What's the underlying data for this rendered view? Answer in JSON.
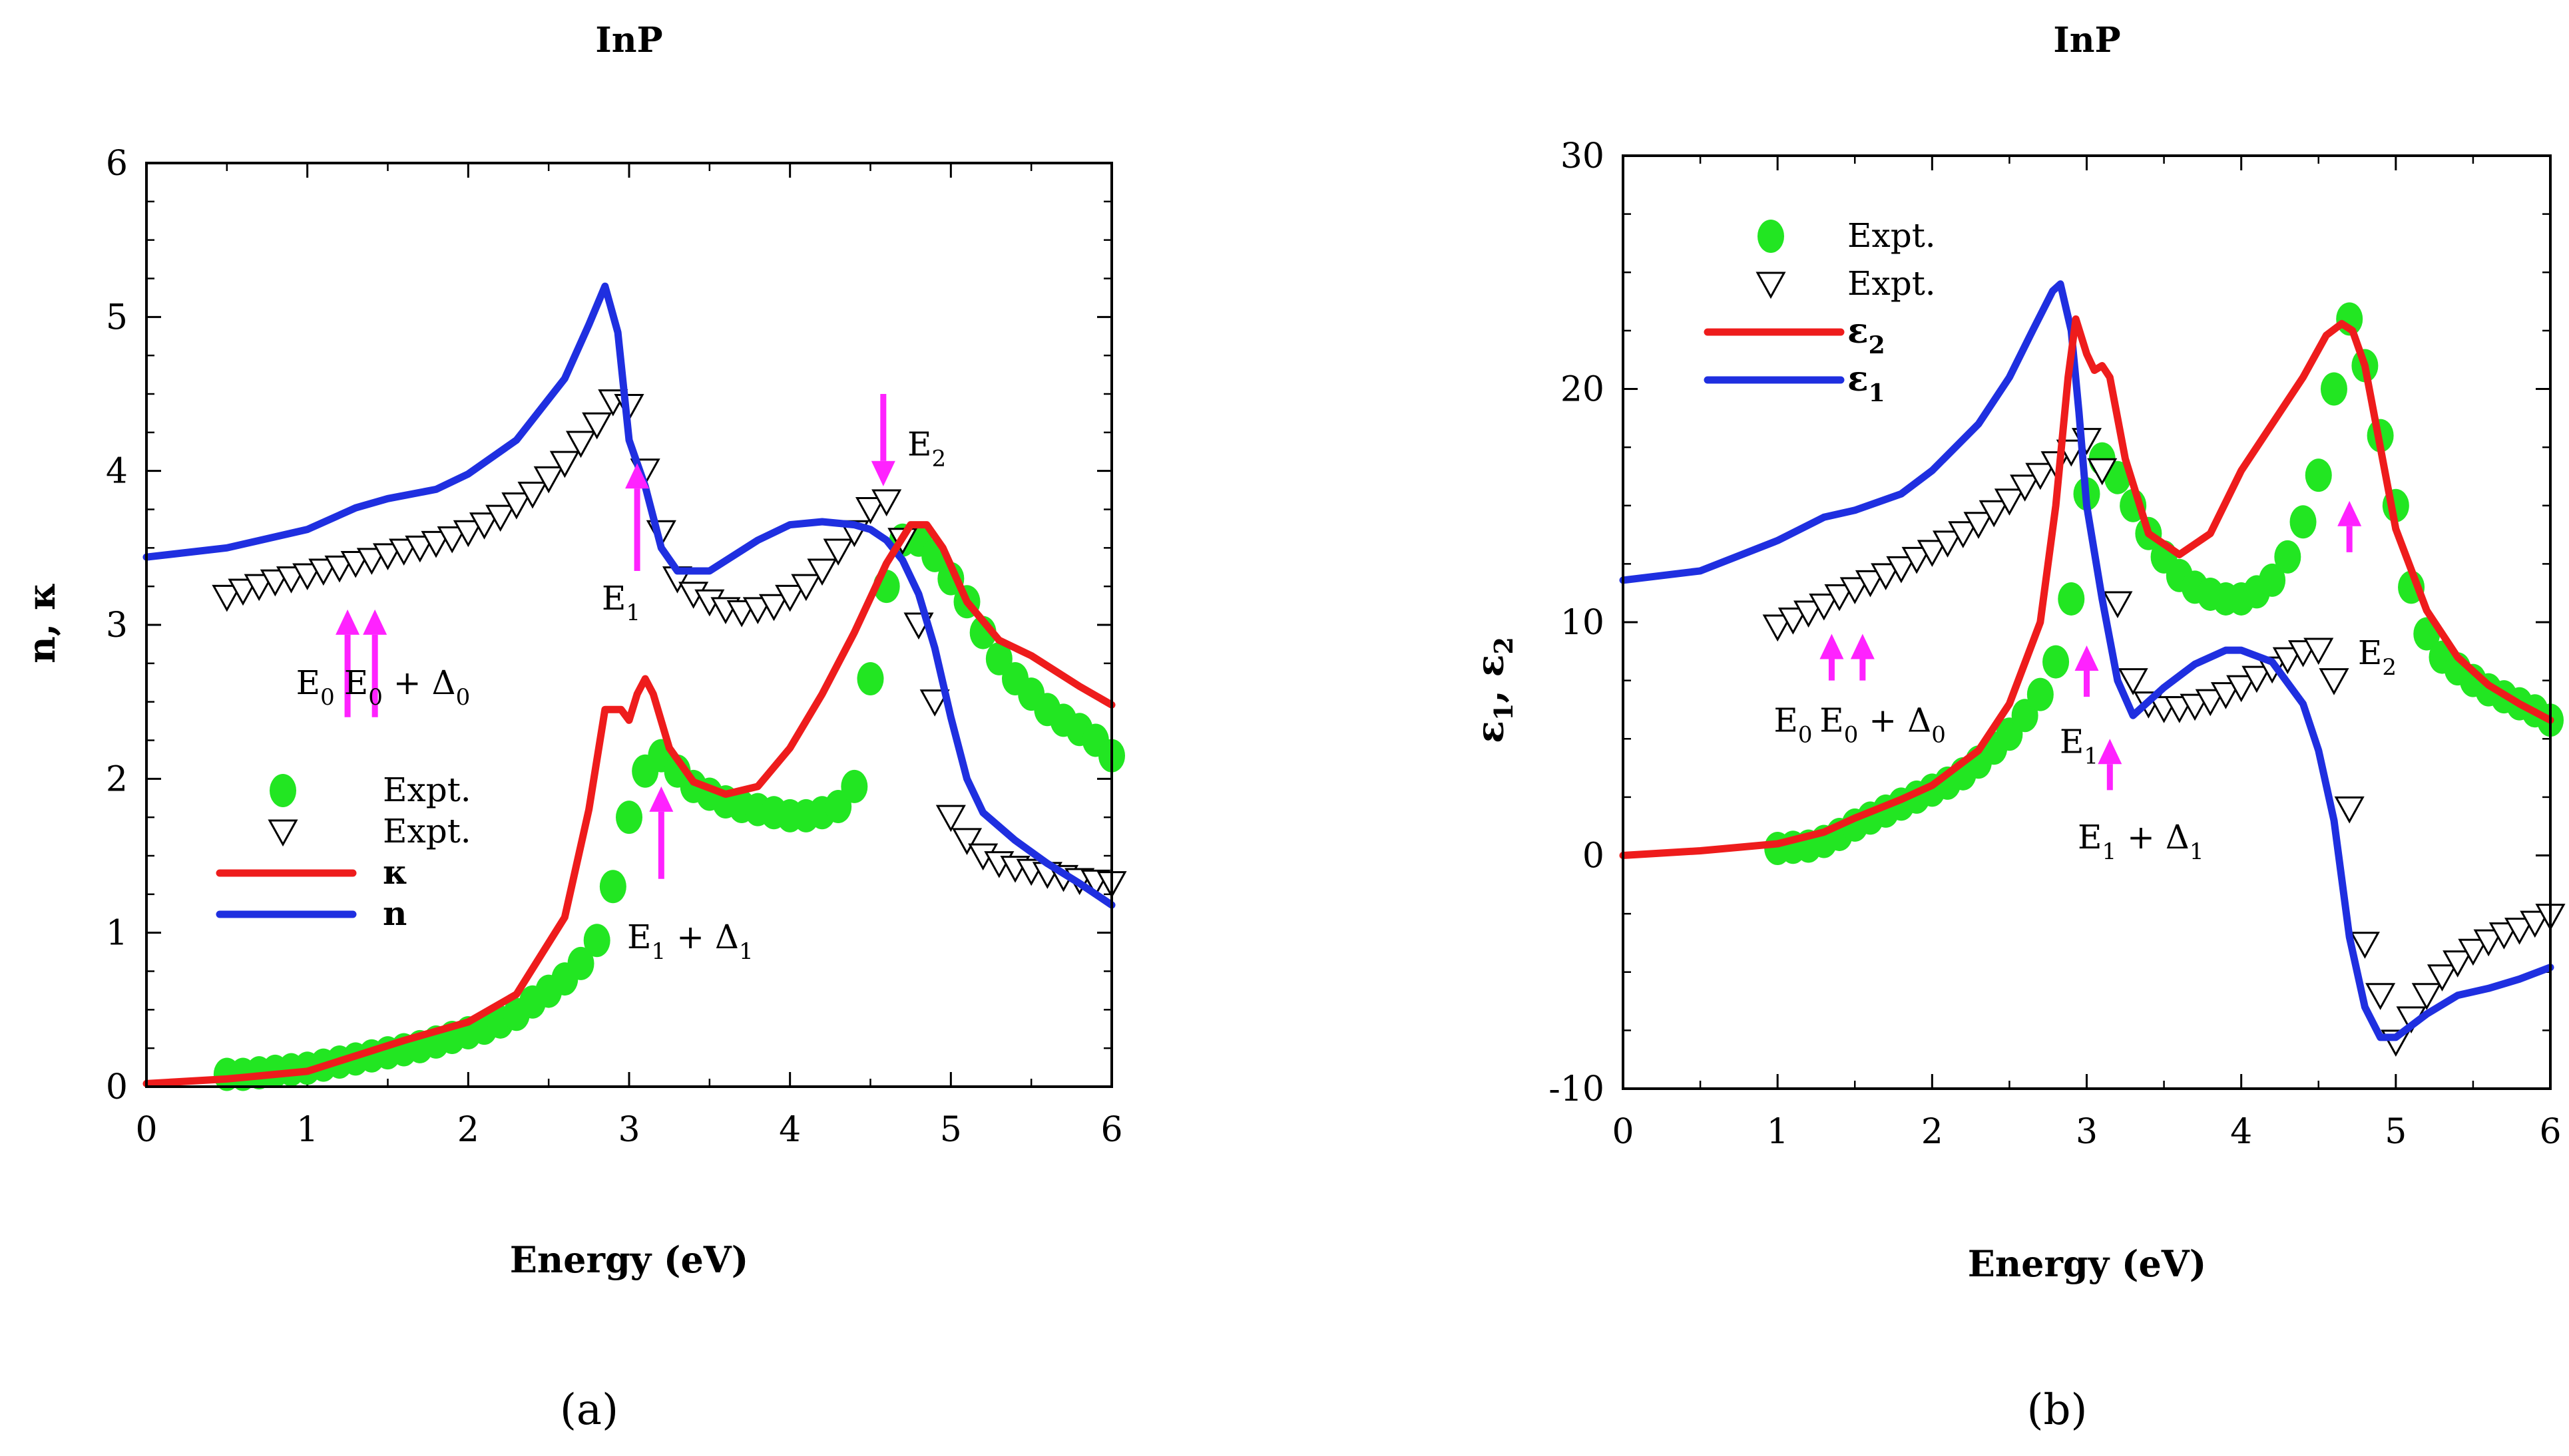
{
  "colors": {
    "red": "#ee1c1c",
    "blue": "#1f2fe0",
    "green": "#22e622",
    "magenta": "#ff22ff",
    "black": "#000000"
  },
  "chart_data": [
    {
      "type": "line",
      "title": "InP",
      "caption": "(a)",
      "xlabel": "Energy (eV)",
      "ylabel": "n, κ",
      "xlim": [
        0,
        6
      ],
      "ylim": [
        0,
        6
      ],
      "xticks": [
        0,
        1,
        2,
        3,
        4,
        5,
        6
      ],
      "yticks": [
        0,
        1,
        2,
        3,
        4,
        5,
        6
      ],
      "legend": {
        "placement": "lower-left",
        "entries": [
          {
            "label": "Expt.",
            "marker": "circle",
            "color": "#22e622"
          },
          {
            "label": "Expt.",
            "marker": "triangle-down",
            "color": "#000000"
          },
          {
            "label": "κ",
            "marker": "line",
            "color": "#ee1c1c"
          },
          {
            "label": "n",
            "marker": "line",
            "color": "#1f2fe0"
          }
        ]
      },
      "series": [
        {
          "name": "n",
          "kind": "line",
          "color": "#1f2fe0",
          "x": [
            0,
            0.5,
            1.0,
            1.3,
            1.5,
            1.8,
            2.0,
            2.3,
            2.6,
            2.75,
            2.85,
            2.93,
            3.0,
            3.1,
            3.2,
            3.3,
            3.5,
            3.8,
            4.0,
            4.2,
            4.4,
            4.5,
            4.6,
            4.7,
            4.8,
            4.9,
            5.0,
            5.1,
            5.2,
            5.4,
            5.6,
            5.8,
            6.0
          ],
          "y": [
            3.44,
            3.5,
            3.62,
            3.76,
            3.82,
            3.88,
            3.98,
            4.2,
            4.6,
            4.95,
            5.2,
            4.9,
            4.2,
            3.9,
            3.5,
            3.35,
            3.35,
            3.55,
            3.65,
            3.67,
            3.65,
            3.62,
            3.55,
            3.42,
            3.2,
            2.85,
            2.4,
            2.0,
            1.78,
            1.6,
            1.45,
            1.32,
            1.18
          ]
        },
        {
          "name": "κ",
          "kind": "line",
          "color": "#ee1c1c",
          "x": [
            0,
            0.5,
            1.0,
            1.3,
            1.6,
            2.0,
            2.3,
            2.6,
            2.75,
            2.85,
            2.95,
            3.0,
            3.05,
            3.1,
            3.15,
            3.25,
            3.4,
            3.6,
            3.8,
            4.0,
            4.2,
            4.4,
            4.6,
            4.75,
            4.85,
            4.95,
            5.1,
            5.3,
            5.5,
            5.8,
            6.0
          ],
          "y": [
            0.02,
            0.05,
            0.1,
            0.2,
            0.3,
            0.42,
            0.6,
            1.1,
            1.8,
            2.45,
            2.45,
            2.38,
            2.55,
            2.65,
            2.55,
            2.2,
            1.98,
            1.9,
            1.95,
            2.2,
            2.55,
            2.95,
            3.4,
            3.65,
            3.65,
            3.5,
            3.15,
            2.9,
            2.8,
            2.6,
            2.48
          ]
        },
        {
          "name": "Expt.",
          "kind": "circle",
          "color": "#22e622",
          "x": [
            0.5,
            0.6,
            0.7,
            0.8,
            0.9,
            1.0,
            1.1,
            1.2,
            1.3,
            1.4,
            1.5,
            1.6,
            1.7,
            1.8,
            1.9,
            2.0,
            2.1,
            2.2,
            2.3,
            2.4,
            2.5,
            2.6,
            2.7,
            2.8,
            2.9,
            3.0,
            3.1,
            3.2,
            3.3,
            3.4,
            3.5,
            3.6,
            3.7,
            3.8,
            3.9,
            4.0,
            4.1,
            4.2,
            4.3,
            4.4,
            4.5,
            4.6,
            4.7,
            4.8,
            4.9,
            5.0,
            5.1,
            5.2,
            5.3,
            5.4,
            5.5,
            5.6,
            5.7,
            5.8,
            5.9,
            6.0
          ],
          "y": [
            0.08,
            0.08,
            0.09,
            0.1,
            0.11,
            0.12,
            0.14,
            0.16,
            0.18,
            0.2,
            0.22,
            0.24,
            0.26,
            0.29,
            0.32,
            0.35,
            0.38,
            0.42,
            0.47,
            0.55,
            0.62,
            0.7,
            0.8,
            0.95,
            1.3,
            1.75,
            2.05,
            2.15,
            2.05,
            1.95,
            1.9,
            1.85,
            1.82,
            1.8,
            1.78,
            1.76,
            1.76,
            1.78,
            1.82,
            1.95,
            2.65,
            3.25,
            3.55,
            3.55,
            3.45,
            3.3,
            3.15,
            2.95,
            2.78,
            2.65,
            2.55,
            2.45,
            2.38,
            2.32,
            2.25,
            2.15
          ]
        },
        {
          "name": "Expt.",
          "kind": "triangle-down",
          "color": "#000000",
          "x": [
            0.5,
            0.6,
            0.7,
            0.8,
            0.9,
            1.0,
            1.1,
            1.2,
            1.3,
            1.4,
            1.5,
            1.6,
            1.7,
            1.8,
            1.9,
            2.0,
            2.1,
            2.2,
            2.3,
            2.4,
            2.5,
            2.6,
            2.7,
            2.8,
            2.9,
            3.0,
            3.1,
            3.2,
            3.3,
            3.4,
            3.5,
            3.6,
            3.7,
            3.8,
            3.9,
            4.0,
            4.1,
            4.2,
            4.3,
            4.4,
            4.5,
            4.6,
            4.7,
            4.8,
            4.9,
            5.0,
            5.1,
            5.2,
            5.3,
            5.4,
            5.5,
            5.6,
            5.7,
            5.8,
            5.9,
            6.0
          ],
          "y": [
            3.18,
            3.22,
            3.25,
            3.28,
            3.3,
            3.32,
            3.35,
            3.37,
            3.4,
            3.42,
            3.45,
            3.48,
            3.5,
            3.53,
            3.56,
            3.6,
            3.65,
            3.7,
            3.78,
            3.85,
            3.95,
            4.05,
            4.18,
            4.3,
            4.45,
            4.42,
            4.0,
            3.6,
            3.3,
            3.2,
            3.15,
            3.1,
            3.08,
            3.1,
            3.12,
            3.18,
            3.25,
            3.35,
            3.48,
            3.6,
            3.75,
            3.8,
            3.55,
            3.0,
            2.5,
            1.75,
            1.6,
            1.5,
            1.45,
            1.42,
            1.4,
            1.38,
            1.36,
            1.34,
            1.33,
            1.32
          ]
        }
      ],
      "annotations": [
        {
          "main": "E",
          "sub": "0",
          "suffix": "",
          "sub2": "",
          "x": 1.05,
          "y": 2.55
        },
        {
          "main": "E",
          "sub": "0",
          "suffix": " + Δ",
          "sub2": "0",
          "x": 1.62,
          "y": 2.55
        },
        {
          "main": "E",
          "sub": "1",
          "suffix": "",
          "sub2": "",
          "x": 2.95,
          "y": 3.1
        },
        {
          "main": "E",
          "sub": "1",
          "suffix": " + Δ",
          "sub2": "1",
          "x": 3.38,
          "y": 0.9
        },
        {
          "main": "E",
          "sub": "2",
          "suffix": "",
          "sub2": "",
          "x": 4.85,
          "y": 4.1
        }
      ],
      "arrows": [
        {
          "x": 1.25,
          "from": 2.4,
          "to": 3.1,
          "dir": "up"
        },
        {
          "x": 1.42,
          "from": 2.4,
          "to": 3.1,
          "dir": "up"
        },
        {
          "x": 3.05,
          "from": 3.35,
          "to": 4.05,
          "dir": "up"
        },
        {
          "x": 3.2,
          "from": 1.35,
          "to": 1.95,
          "dir": "up"
        },
        {
          "x": 4.58,
          "from": 4.5,
          "to": 3.9,
          "dir": "down"
        }
      ]
    },
    {
      "type": "line",
      "title": "InP",
      "caption": "(b)",
      "xlabel": "Energy (eV)",
      "ylabel": "ε1, ε2",
      "xlim": [
        0,
        6
      ],
      "ylim": [
        -10,
        30
      ],
      "xticks": [
        0,
        1,
        2,
        3,
        4,
        5,
        6
      ],
      "yticks": [
        -10,
        0,
        10,
        20,
        30
      ],
      "legend": {
        "placement": "upper-left",
        "entries": [
          {
            "label": "Expt.",
            "marker": "circle",
            "color": "#22e622"
          },
          {
            "label": "Expt.",
            "marker": "triangle-down",
            "color": "#000000"
          },
          {
            "label": "ε2",
            "marker": "line",
            "color": "#ee1c1c"
          },
          {
            "label": "ε1",
            "marker": "line",
            "color": "#1f2fe0"
          }
        ]
      },
      "series": [
        {
          "name": "ε1",
          "kind": "line",
          "color": "#1f2fe0",
          "x": [
            0,
            0.5,
            1.0,
            1.3,
            1.5,
            1.8,
            2.0,
            2.3,
            2.5,
            2.65,
            2.78,
            2.83,
            2.9,
            2.95,
            3.0,
            3.05,
            3.1,
            3.2,
            3.3,
            3.5,
            3.7,
            3.9,
            4.0,
            4.2,
            4.4,
            4.5,
            4.6,
            4.7,
            4.8,
            4.9,
            5.0,
            5.2,
            5.4,
            5.6,
            5.8,
            6.0
          ],
          "y": [
            11.8,
            12.2,
            13.5,
            14.5,
            14.8,
            15.5,
            16.5,
            18.5,
            20.5,
            22.5,
            24.2,
            24.5,
            22.5,
            19.0,
            15.0,
            13.0,
            11.0,
            7.5,
            6.0,
            7.2,
            8.2,
            8.8,
            8.8,
            8.3,
            6.5,
            4.5,
            1.5,
            -3.5,
            -6.5,
            -7.8,
            -7.8,
            -6.8,
            -6.0,
            -5.7,
            -5.3,
            -4.8
          ]
        },
        {
          "name": "ε2",
          "kind": "line",
          "color": "#ee1c1c",
          "x": [
            0,
            0.5,
            1.0,
            1.3,
            1.5,
            1.8,
            2.0,
            2.3,
            2.5,
            2.7,
            2.8,
            2.88,
            2.93,
            3.0,
            3.05,
            3.1,
            3.15,
            3.25,
            3.4,
            3.6,
            3.8,
            4.0,
            4.2,
            4.4,
            4.55,
            4.65,
            4.72,
            4.8,
            4.9,
            5.0,
            5.2,
            5.4,
            5.6,
            5.8,
            6.0
          ],
          "y": [
            0.0,
            0.2,
            0.5,
            1.0,
            1.6,
            2.4,
            3.0,
            4.5,
            6.5,
            10.0,
            15.0,
            20.5,
            23.0,
            21.5,
            20.8,
            21.0,
            20.5,
            17.0,
            13.8,
            12.9,
            13.8,
            16.5,
            18.5,
            20.5,
            22.3,
            22.8,
            22.5,
            21.0,
            17.5,
            14.0,
            10.5,
            8.5,
            7.3,
            6.5,
            5.8
          ]
        },
        {
          "name": "Expt.",
          "kind": "circle",
          "color": "#22e622",
          "x": [
            1.0,
            1.1,
            1.2,
            1.3,
            1.4,
            1.5,
            1.6,
            1.7,
            1.8,
            1.9,
            2.0,
            2.1,
            2.2,
            2.3,
            2.4,
            2.5,
            2.6,
            2.7,
            2.8,
            2.9,
            3.0,
            3.1,
            3.2,
            3.3,
            3.4,
            3.5,
            3.6,
            3.7,
            3.8,
            3.9,
            4.0,
            4.1,
            4.2,
            4.3,
            4.4,
            4.5,
            4.6,
            4.7,
            4.8,
            4.9,
            5.0,
            5.1,
            5.2,
            5.3,
            5.4,
            5.5,
            5.6,
            5.7,
            5.8,
            5.9,
            6.0
          ],
          "y": [
            0.3,
            0.35,
            0.4,
            0.6,
            0.9,
            1.3,
            1.6,
            1.9,
            2.2,
            2.5,
            2.8,
            3.1,
            3.5,
            4.0,
            4.6,
            5.2,
            6.0,
            6.9,
            8.3,
            11.0,
            15.5,
            17.0,
            16.2,
            15.0,
            13.8,
            12.8,
            12.0,
            11.5,
            11.2,
            11.0,
            11.0,
            11.3,
            11.8,
            12.8,
            14.3,
            16.3,
            20.0,
            23.0,
            21.0,
            18.0,
            15.0,
            11.5,
            9.5,
            8.5,
            8.0,
            7.5,
            7.1,
            6.8,
            6.5,
            6.2,
            5.8
          ]
        },
        {
          "name": "Expt.",
          "kind": "triangle-down",
          "color": "#000000",
          "x": [
            1.0,
            1.1,
            1.2,
            1.3,
            1.4,
            1.5,
            1.6,
            1.7,
            1.8,
            1.9,
            2.0,
            2.1,
            2.2,
            2.3,
            2.4,
            2.5,
            2.6,
            2.7,
            2.8,
            2.9,
            3.0,
            3.1,
            3.2,
            3.3,
            3.4,
            3.5,
            3.6,
            3.7,
            3.8,
            3.9,
            4.0,
            4.1,
            4.2,
            4.3,
            4.4,
            4.5,
            4.6,
            4.7,
            4.8,
            4.9,
            5.0,
            5.1,
            5.2,
            5.3,
            5.4,
            5.5,
            5.6,
            5.7,
            5.8,
            5.9,
            6.0
          ],
          "y": [
            9.8,
            10.1,
            10.4,
            10.7,
            11.1,
            11.4,
            11.7,
            12.0,
            12.3,
            12.7,
            13.0,
            13.4,
            13.8,
            14.2,
            14.7,
            15.2,
            15.8,
            16.3,
            16.8,
            17.3,
            17.8,
            16.5,
            10.8,
            7.5,
            6.5,
            6.3,
            6.3,
            6.4,
            6.6,
            6.9,
            7.2,
            7.6,
            8.0,
            8.4,
            8.7,
            8.8,
            7.5,
            2.0,
            -3.8,
            -6.0,
            -8.0,
            -7.0,
            -6.0,
            -5.2,
            -4.6,
            -4.1,
            -3.7,
            -3.4,
            -3.2,
            -2.9,
            -2.6
          ]
        }
      ],
      "annotations": [
        {
          "main": "E",
          "sub": "0",
          "suffix": "",
          "sub2": "",
          "x": 1.1,
          "y": 5.3
        },
        {
          "main": "E",
          "sub": "0",
          "suffix": " + Δ",
          "sub2": "0",
          "x": 1.68,
          "y": 5.3
        },
        {
          "main": "E",
          "sub": "1",
          "suffix": "",
          "sub2": "",
          "x": 2.95,
          "y": 4.4
        },
        {
          "main": "E",
          "sub": "1",
          "suffix": " + Δ",
          "sub2": "1",
          "x": 3.35,
          "y": 0.3
        },
        {
          "main": "E",
          "sub": "2",
          "suffix": "",
          "sub2": "",
          "x": 4.88,
          "y": 8.2
        }
      ],
      "arrows": [
        {
          "x": 1.35,
          "from": 7.5,
          "to": 9.5,
          "dir": "up"
        },
        {
          "x": 1.55,
          "from": 7.5,
          "to": 9.5,
          "dir": "up"
        },
        {
          "x": 3.0,
          "from": 6.8,
          "to": 9.0,
          "dir": "up"
        },
        {
          "x": 3.15,
          "from": 2.8,
          "to": 5.0,
          "dir": "up"
        },
        {
          "x": 4.7,
          "from": 13.0,
          "to": 15.2,
          "dir": "up"
        }
      ]
    }
  ]
}
